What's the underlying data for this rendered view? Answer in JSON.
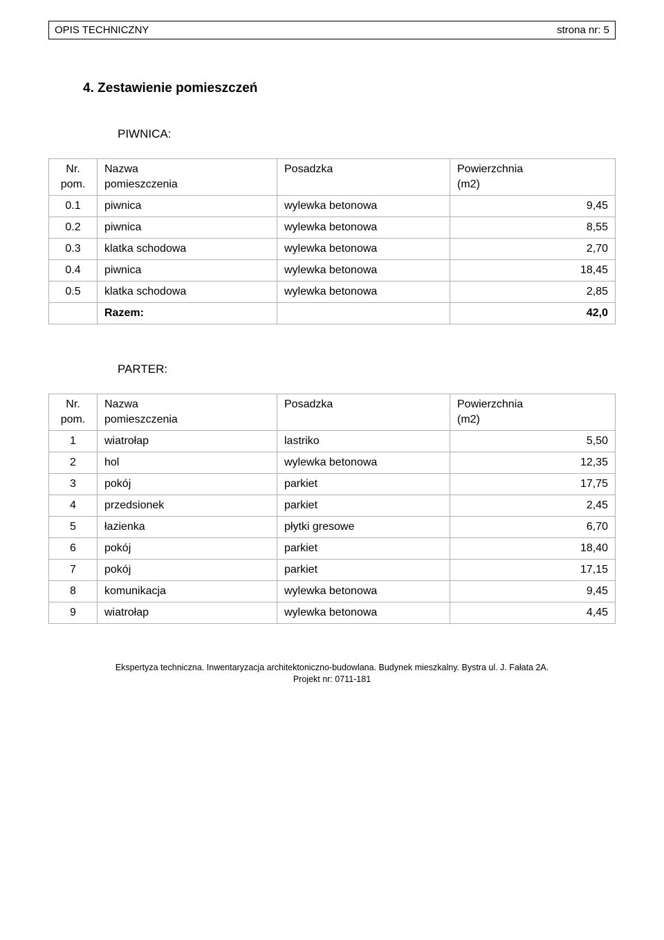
{
  "header": {
    "left": "OPIS TECHNICZNY",
    "right": "strona nr: 5"
  },
  "section": {
    "number": "4.",
    "title": "Zestawienie pomieszczeń"
  },
  "table_headers": {
    "nr_top": "Nr.",
    "nr_bot": "pom.",
    "name_top": "Nazwa",
    "name_bot": "pomieszczenia",
    "floor": "Posadzka",
    "area_top": "Powierzchnia",
    "area_bot": "(m2)"
  },
  "piwnica": {
    "label": "PIWNICA:",
    "rows": [
      {
        "nr": "0.1",
        "name": "piwnica",
        "floor": "wylewka betonowa",
        "area": "9,45"
      },
      {
        "nr": "0.2",
        "name": "piwnica",
        "floor": "wylewka betonowa",
        "area": "8,55"
      },
      {
        "nr": "0.3",
        "name": "klatka schodowa",
        "floor": "wylewka betonowa",
        "area": "2,70"
      },
      {
        "nr": "0.4",
        "name": "piwnica",
        "floor": "wylewka betonowa",
        "area": "18,45"
      },
      {
        "nr": "0.5",
        "name": "klatka schodowa",
        "floor": "wylewka betonowa",
        "area": "2,85"
      }
    ],
    "total_label": "Razem:",
    "total_value": "42,0"
  },
  "parter": {
    "label": "PARTER:",
    "rows": [
      {
        "nr": "1",
        "name": "wiatrołap",
        "floor": "lastriko",
        "area": "5,50"
      },
      {
        "nr": "2",
        "name": "hol",
        "floor": "wylewka betonowa",
        "area": "12,35"
      },
      {
        "nr": "3",
        "name": "pokój",
        "floor": "parkiet",
        "area": "17,75"
      },
      {
        "nr": "4",
        "name": "przedsionek",
        "floor": "parkiet",
        "area": "2,45"
      },
      {
        "nr": "5",
        "name": "łazienka",
        "floor": "płytki gresowe",
        "area": "6,70"
      },
      {
        "nr": "6",
        "name": "pokój",
        "floor": "parkiet",
        "area": "18,40"
      },
      {
        "nr": "7",
        "name": "pokój",
        "floor": "parkiet",
        "area": "17,15"
      },
      {
        "nr": "8",
        "name": "komunikacja",
        "floor": "wylewka betonowa",
        "area": "9,45"
      },
      {
        "nr": "9",
        "name": "wiatrołap",
        "floor": "wylewka betonowa",
        "area": "4,45"
      }
    ]
  },
  "footer": {
    "line1": "Ekspertyza techniczna. Inwentaryzacja architektoniczno-budowlana. Budynek mieszkalny. Bystra ul. J. Fałata 2A.",
    "line2": "Projekt nr: 0711-181"
  }
}
